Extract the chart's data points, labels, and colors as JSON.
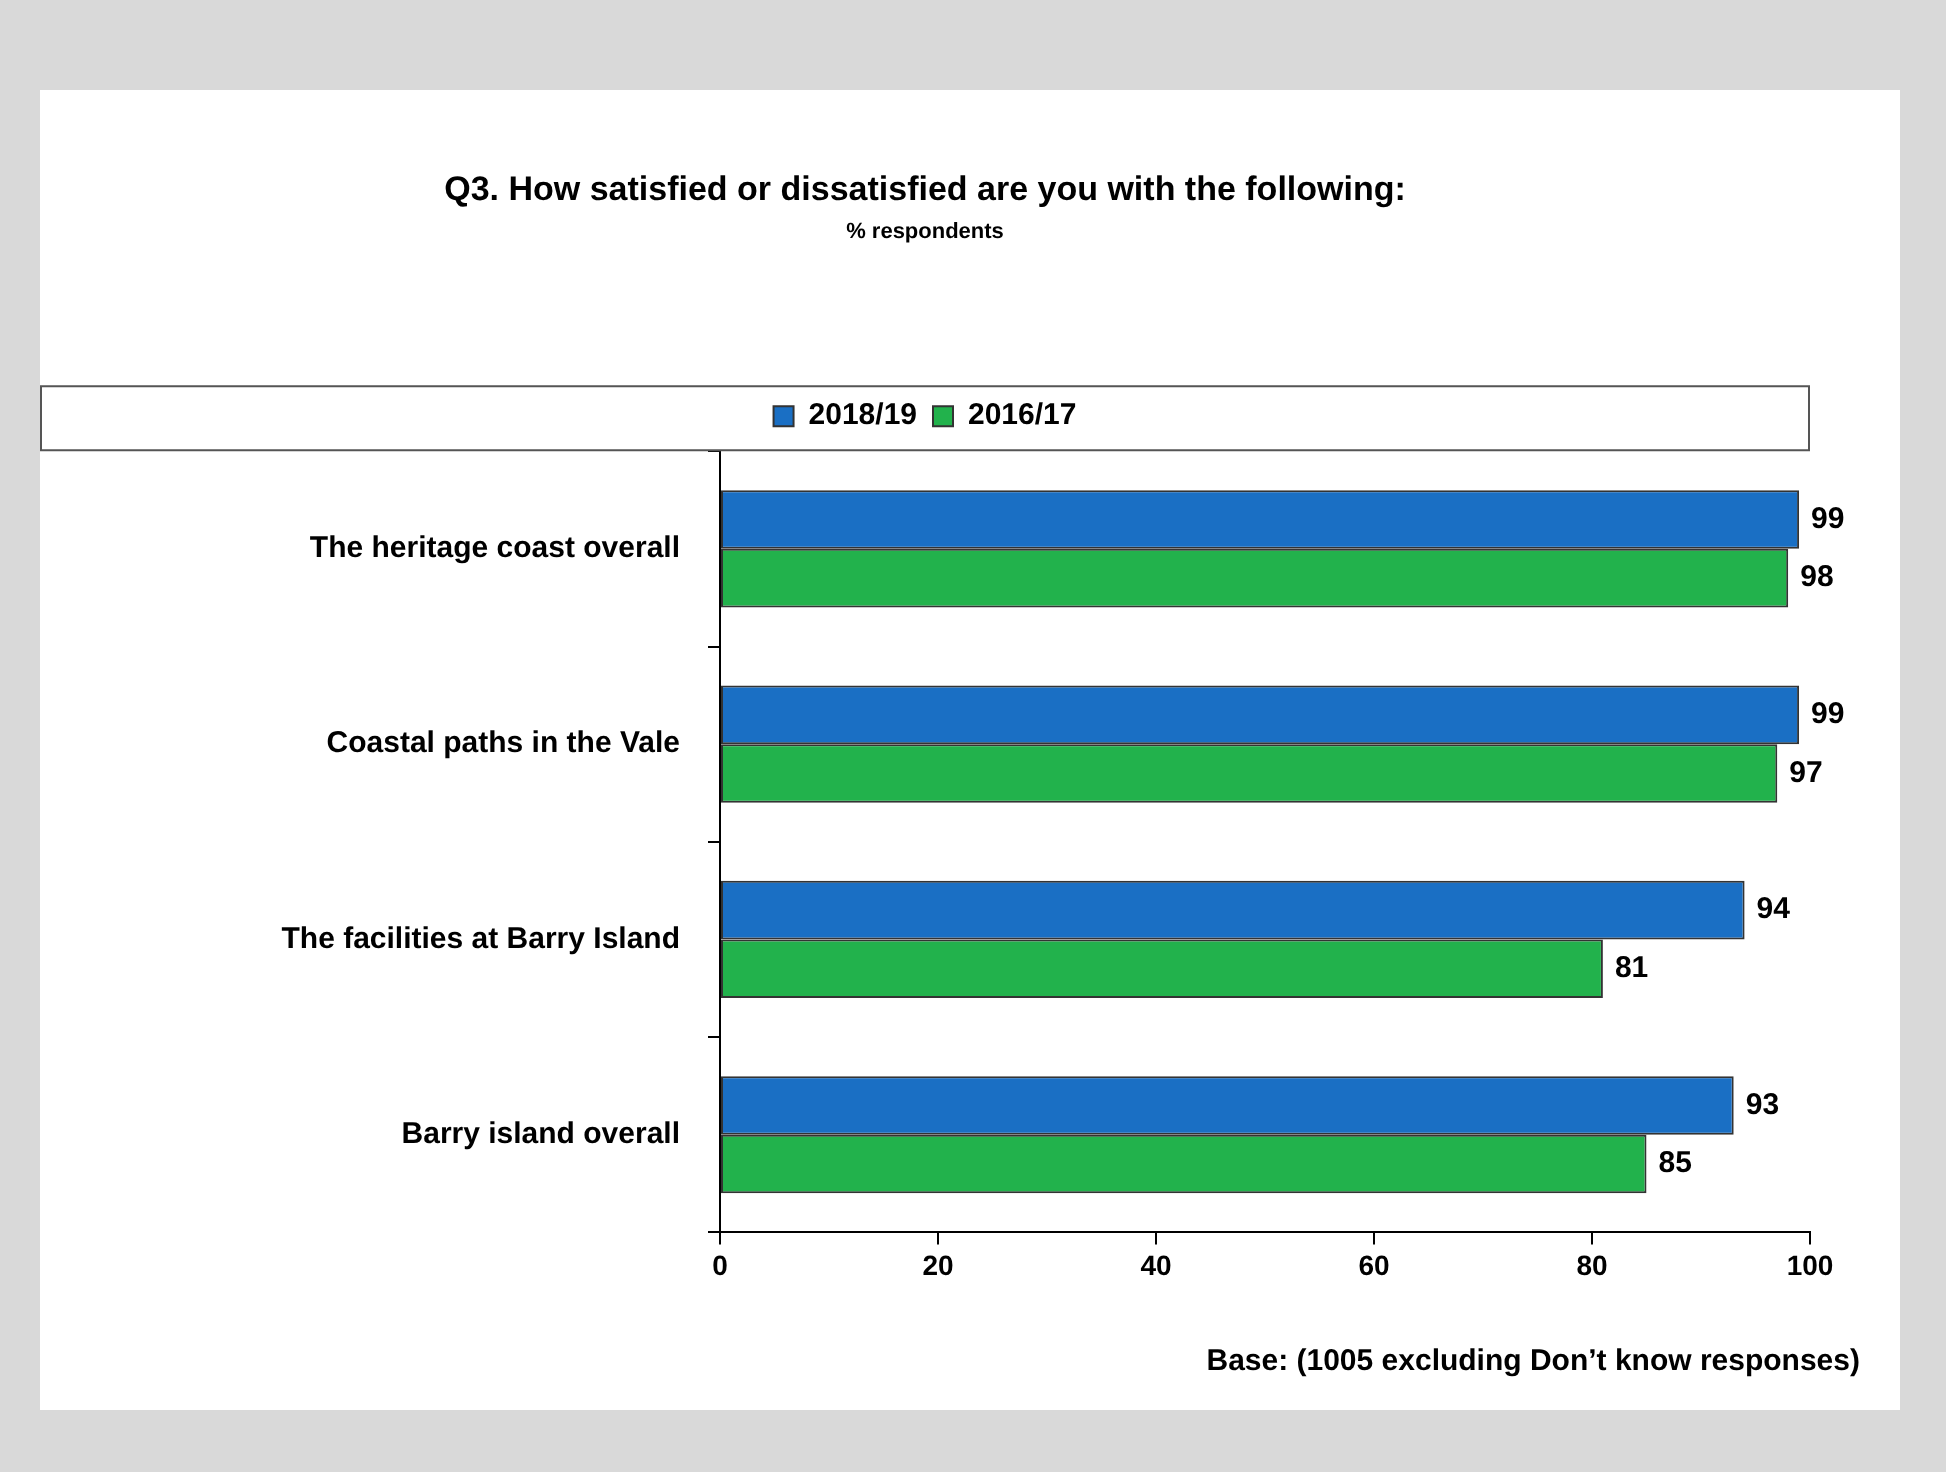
{
  "chart_data": {
    "type": "bar",
    "orientation": "horizontal",
    "title": "Q3. How satisfied or dissatisfied are you with the following:",
    "subtitle": "% respondents",
    "categories": [
      "The heritage coast overall",
      "Coastal paths in the Vale",
      "The facilities at Barry Island",
      "Barry island overall"
    ],
    "series": [
      {
        "name": "2018/19",
        "color": "#1a6fc4",
        "values": [
          99,
          99,
          94,
          93
        ]
      },
      {
        "name": "2016/17",
        "color": "#22b24c",
        "values": [
          98,
          97,
          81,
          85
        ]
      }
    ],
    "xlim": [
      0,
      100
    ],
    "xticks": [
      0,
      20,
      40,
      60,
      80,
      100
    ],
    "grid": false,
    "legend": "top",
    "data_labels": true,
    "annotations": [
      "Base: (1005 excluding Don’t know responses)"
    ]
  }
}
